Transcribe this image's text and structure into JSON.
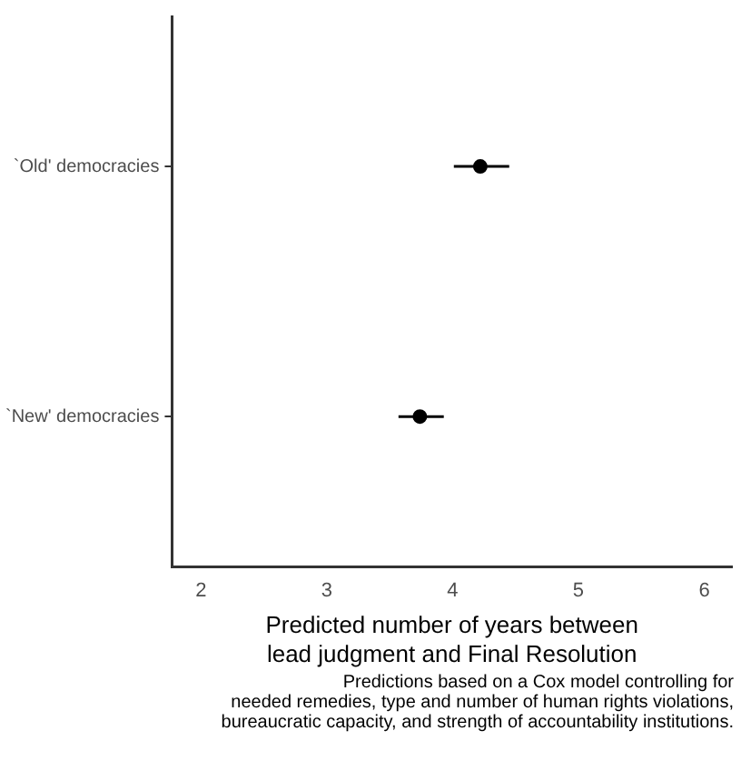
{
  "chart_data": {
    "type": "scatter",
    "orientation": "horizontal",
    "categories": [
      "`Old' democracies",
      "`New' democracies"
    ],
    "values": [
      4.22,
      3.74
    ],
    "errors": [
      [
        4.01,
        4.45
      ],
      [
        3.57,
        3.93
      ]
    ],
    "color": "#000000",
    "marker": "circle",
    "xlim": [
      1.77,
      6.22
    ],
    "xticks": [
      2,
      3,
      4,
      5,
      6
    ],
    "xlabel": "Predicted number of years between\nlead judgment and Final Resolution",
    "annotations": [
      "Predictions based on a Cox model controlling for\nneeded remedies, type and number of human rights violations,\nbureaucratic capacity, and strength of accountability institutions."
    ],
    "grid": false,
    "legend": false
  }
}
